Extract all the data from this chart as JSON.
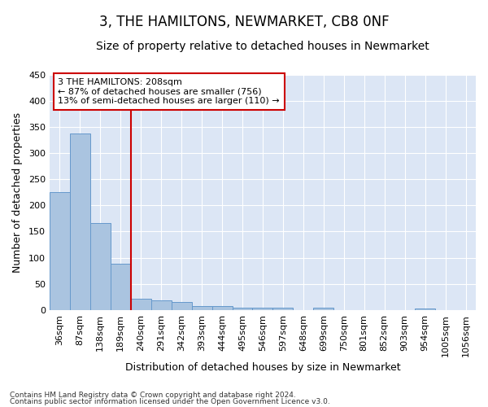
{
  "title": "3, THE HAMILTONS, NEWMARKET, CB8 0NF",
  "subtitle": "Size of property relative to detached houses in Newmarket",
  "xlabel": "Distribution of detached houses by size in Newmarket",
  "ylabel": "Number of detached properties",
  "footnote1": "Contains HM Land Registry data © Crown copyright and database right 2024.",
  "footnote2": "Contains public sector information licensed under the Open Government Licence v3.0.",
  "bar_labels": [
    "36sqm",
    "87sqm",
    "138sqm",
    "189sqm",
    "240sqm",
    "291sqm",
    "342sqm",
    "393sqm",
    "444sqm",
    "495sqm",
    "546sqm",
    "597sqm",
    "648sqm",
    "699sqm",
    "750sqm",
    "801sqm",
    "852sqm",
    "903sqm",
    "954sqm",
    "1005sqm",
    "1056sqm"
  ],
  "bar_values": [
    226,
    338,
    166,
    89,
    21,
    19,
    15,
    7,
    7,
    4,
    5,
    4,
    0,
    5,
    0,
    0,
    0,
    0,
    3,
    0,
    0
  ],
  "bar_color": "#aac4e0",
  "bar_edge_color": "#6699cc",
  "vline_x": 3.5,
  "vline_color": "#cc0000",
  "annotation_text": "3 THE HAMILTONS: 208sqm\n← 87% of detached houses are smaller (756)\n13% of semi-detached houses are larger (110) →",
  "annotation_box_color": "#ffffff",
  "annotation_border_color": "#cc0000",
  "ylim": [
    0,
    450
  ],
  "yticks": [
    0,
    50,
    100,
    150,
    200,
    250,
    300,
    350,
    400,
    450
  ],
  "background_color": "#dce6f5",
  "grid_color": "#ffffff",
  "fig_background": "#ffffff",
  "title_fontsize": 12,
  "subtitle_fontsize": 10,
  "xlabel_fontsize": 9,
  "ylabel_fontsize": 9,
  "tick_fontsize": 8,
  "annot_fontsize": 8,
  "footnote_fontsize": 6.5
}
